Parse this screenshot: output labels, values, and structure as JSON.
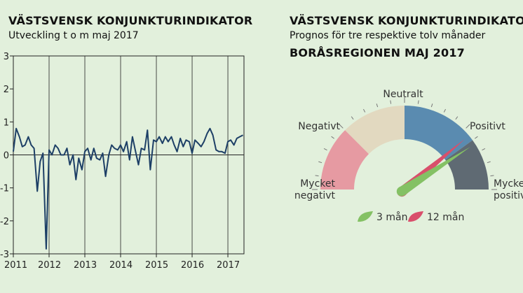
{
  "left_chart": {
    "title": "VÄSTSVENSK KONJUNKTURINDIKATOR",
    "subtitle": "Utveckling t o m maj 2017"
  },
  "right_chart": {
    "title": "VÄSTSVENSK KONJUNKTURINDIKATOR",
    "subtitle": "Prognos för tre respektive tolv månader",
    "region": "BORÅSREGIONEN MAJ 2017"
  },
  "chart_data": [
    {
      "type": "line",
      "title": "VÄSTSVENSK KONJUNKTURINDIKATOR",
      "subtitle": "Utveckling t o m maj 2017",
      "xlabel": "",
      "ylabel": "",
      "xlim": [
        2011,
        2017.45
      ],
      "ylim": [
        -3,
        3
      ],
      "xticks": [
        "2011",
        "2012",
        "2013",
        "2014",
        "2015",
        "2016",
        "2017"
      ],
      "yticks": [
        "3",
        "2",
        "1",
        "0",
        "-1",
        "-2",
        "-3"
      ],
      "grid": "vertical",
      "line_color": "#1d3f66",
      "series": [
        {
          "x": [
            2011.0,
            2011.08,
            2011.17,
            2011.25,
            2011.33,
            2011.42,
            2011.5,
            2011.58,
            2011.67,
            2011.75,
            2011.83,
            2011.92,
            2012.0,
            2012.08,
            2012.17,
            2012.25,
            2012.33,
            2012.42,
            2012.5,
            2012.58,
            2012.67,
            2012.75,
            2012.83,
            2012.92,
            2013.0,
            2013.08,
            2013.17,
            2013.25,
            2013.33,
            2013.42,
            2013.5,
            2013.58,
            2013.67,
            2013.75,
            2013.83,
            2013.92,
            2014.0,
            2014.08,
            2014.17,
            2014.25,
            2014.33,
            2014.42,
            2014.5,
            2014.58,
            2014.67,
            2014.75,
            2014.83,
            2014.92,
            2015.0,
            2015.08,
            2015.17,
            2015.25,
            2015.33,
            2015.42,
            2015.5,
            2015.58,
            2015.67,
            2015.75,
            2015.83,
            2015.92,
            2016.0,
            2016.08,
            2016.17,
            2016.25,
            2016.33,
            2016.42,
            2016.5,
            2016.58,
            2016.67,
            2016.75,
            2016.83,
            2016.92,
            2017.0,
            2017.08,
            2017.17,
            2017.25,
            2017.33,
            2017.42
          ],
          "y": [
            0.1,
            0.8,
            0.55,
            0.25,
            0.3,
            0.55,
            0.3,
            0.2,
            -1.1,
            -0.2,
            0.05,
            -2.85,
            0.15,
            0.0,
            0.3,
            0.2,
            0.0,
            0.0,
            0.2,
            -0.3,
            0.0,
            -0.75,
            -0.1,
            -0.45,
            0.1,
            0.2,
            -0.15,
            0.2,
            -0.1,
            -0.15,
            0.05,
            -0.65,
            0.0,
            0.3,
            0.2,
            0.15,
            0.3,
            0.1,
            0.4,
            -0.15,
            0.55,
            0.1,
            -0.3,
            0.2,
            0.15,
            0.75,
            -0.45,
            0.45,
            0.4,
            0.55,
            0.35,
            0.55,
            0.4,
            0.55,
            0.3,
            0.1,
            0.5,
            0.25,
            0.45,
            0.4,
            0.05,
            0.45,
            0.35,
            0.25,
            0.4,
            0.65,
            0.8,
            0.6,
            0.15,
            0.1,
            0.1,
            0.05,
            0.4,
            0.45,
            0.3,
            0.5,
            0.55,
            0.6
          ]
        }
      ]
    },
    {
      "type": "gauge",
      "title": "VÄSTSVENSK KONJUNKTURINDIKATOR",
      "subtitle": "Prognos för tre respektive tolv månader",
      "region": "BORÅSREGIONEN MAJ 2017",
      "segments": [
        {
          "label": "Mycket negativt",
          "color": "#e69aa2"
        },
        {
          "label": "Negativt",
          "color": "#e2d9c0"
        },
        {
          "label": "Neutralt",
          "color": "#5a8bb0"
        },
        {
          "label": "Positivt",
          "color": "#5a8bb0"
        },
        {
          "label": "Mycket positivt",
          "color": "#5f6a73"
        }
      ],
      "labels": {
        "mycket_negativt_1": "Mycket",
        "mycket_negativt_2": "negativt",
        "negativt": "Negativt",
        "neutralt": "Neutralt",
        "positivt": "Positivt",
        "mycket_positivt_1": "Mycket",
        "mycket_positivt_2": "positivt"
      },
      "needles": [
        {
          "name": "3 mån",
          "value_deg": 33,
          "color": "#84c164"
        },
        {
          "name": "12 mån",
          "value_deg": 40,
          "color": "#d94f6b"
        }
      ],
      "legend": [
        {
          "label": "3 mån",
          "color": "#84c164"
        },
        {
          "label": "12 mån",
          "color": "#d94f6b"
        }
      ]
    }
  ]
}
